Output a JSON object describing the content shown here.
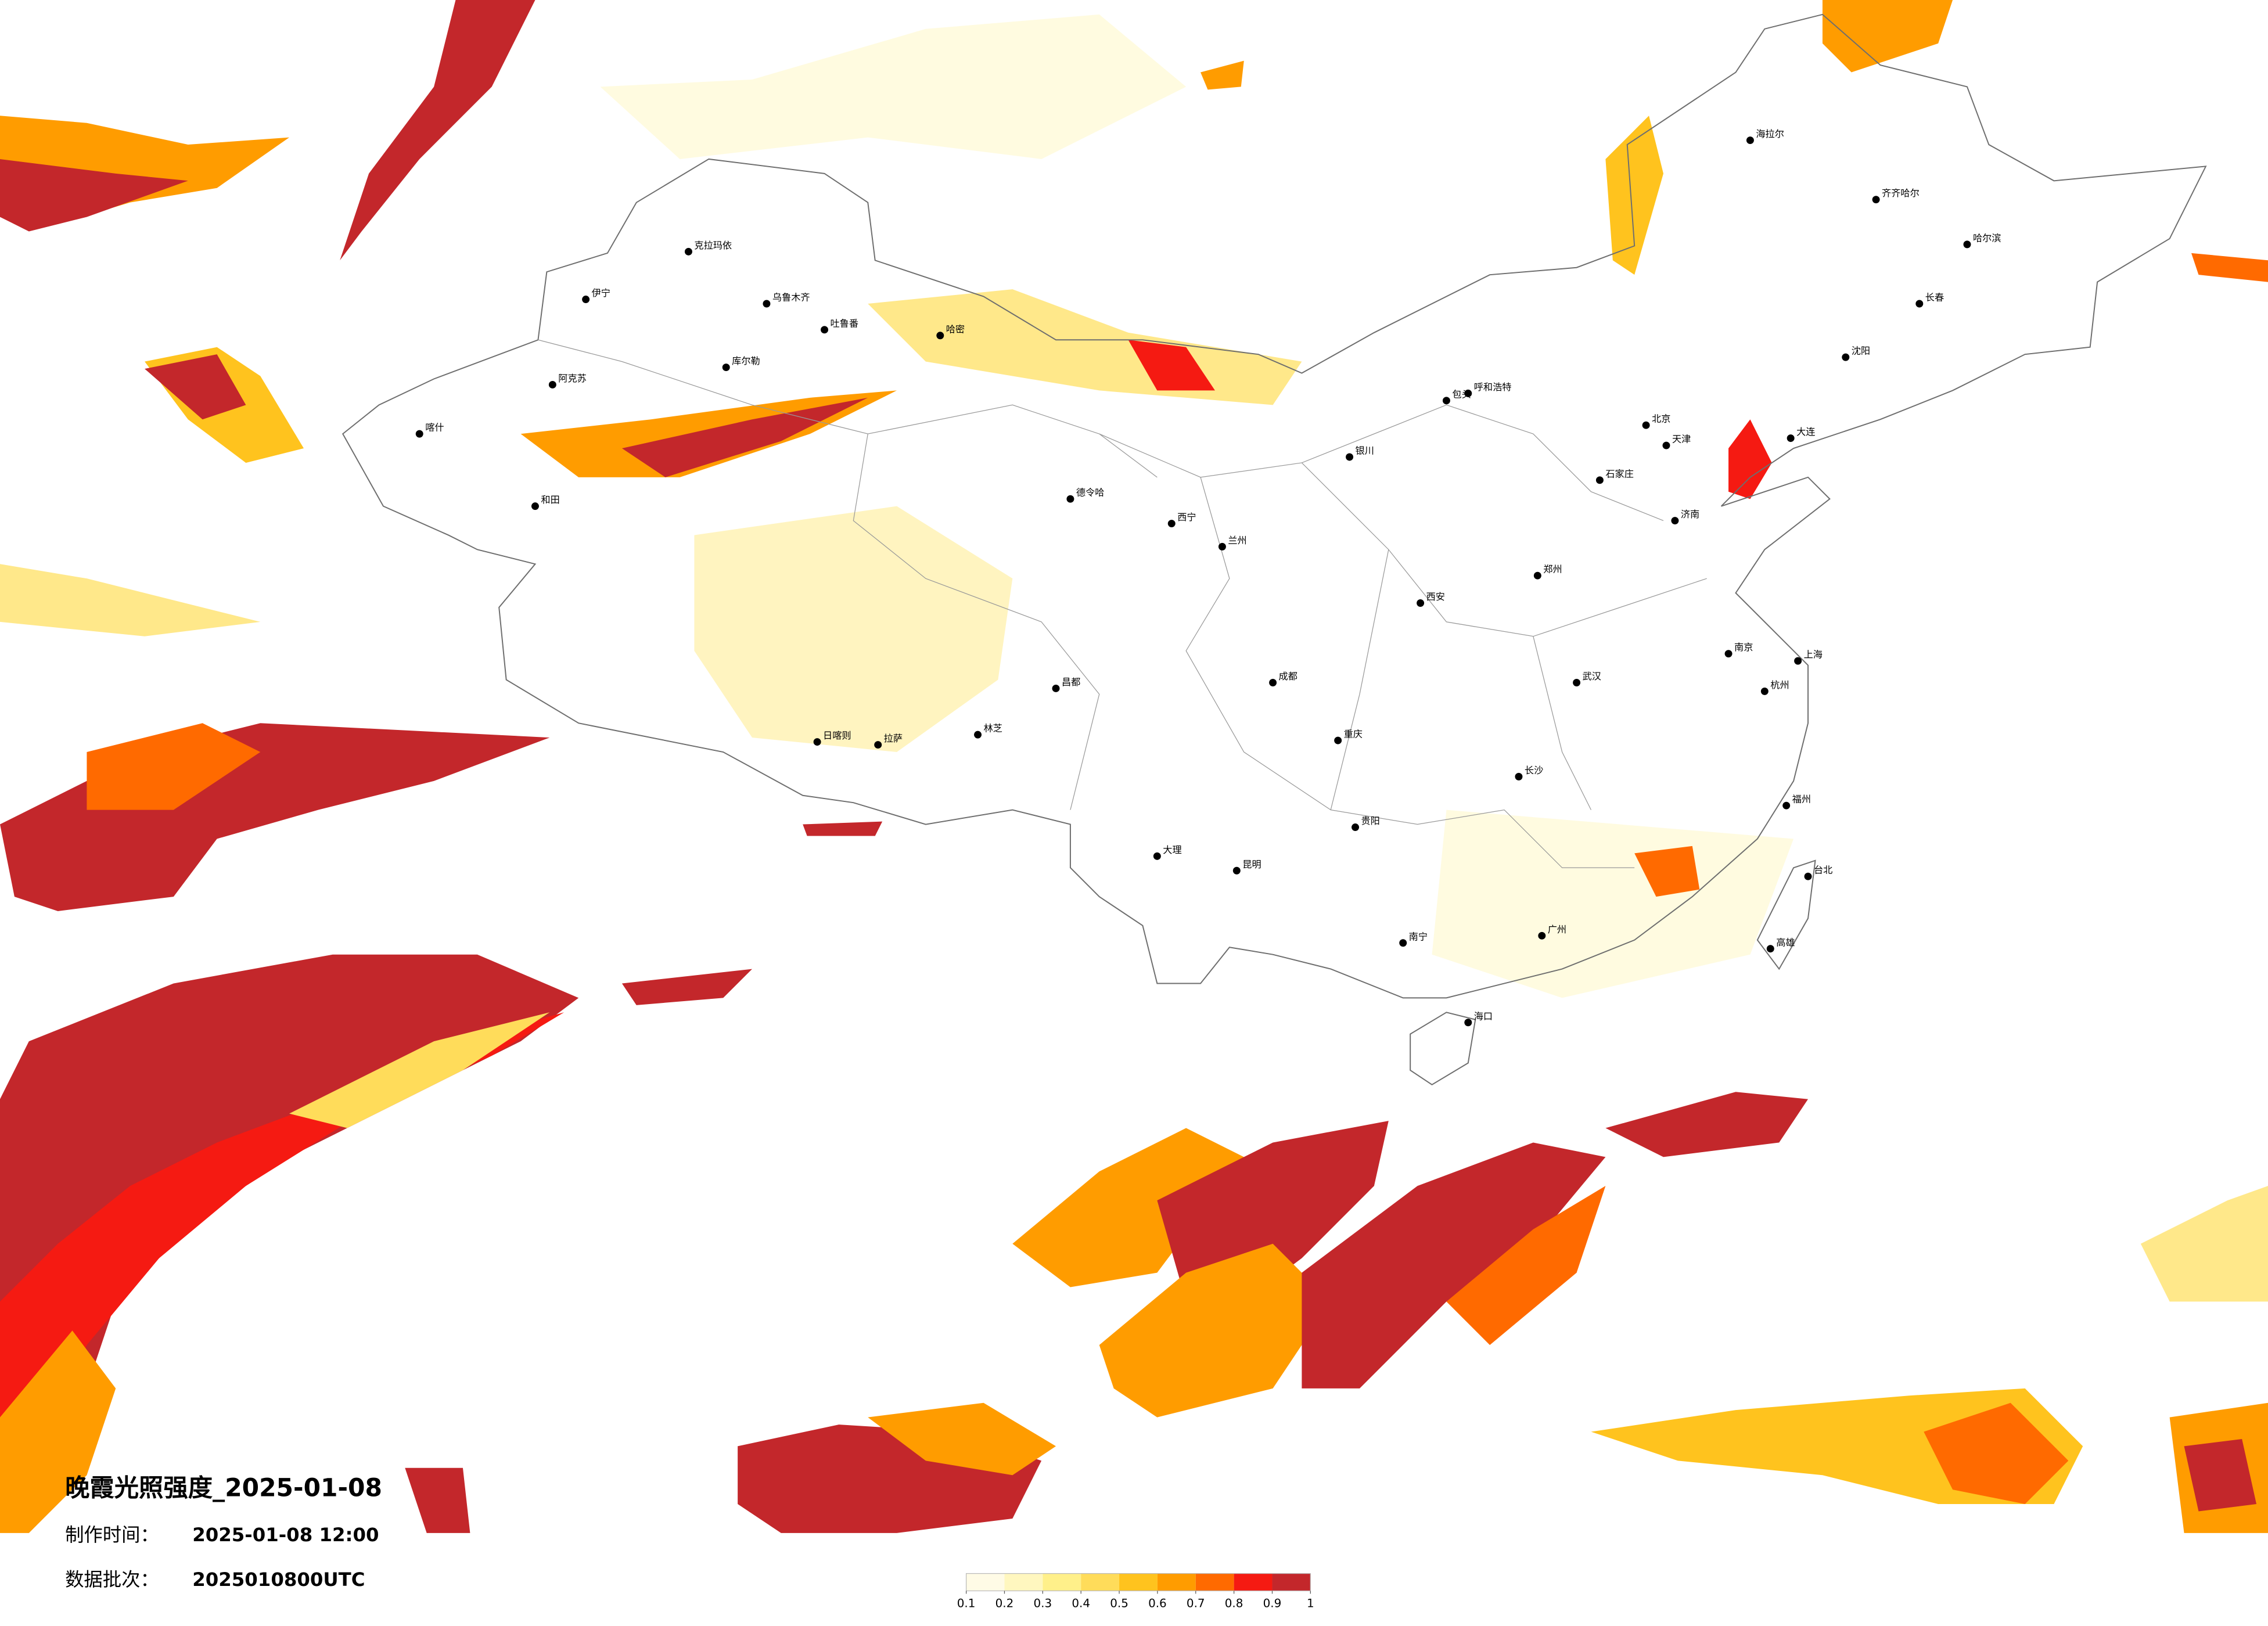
{
  "header": {
    "title": "晚霞光照强度_2025-01-08",
    "made_label": "制作时间：",
    "made_time": "2025-01-08 12:00",
    "batch_label": "数据批次：",
    "batch": "2025010800UTC"
  },
  "legend": {
    "ticks": [
      0.1,
      0.2,
      0.3,
      0.4,
      0.5,
      0.6,
      0.7,
      0.8,
      0.9,
      1
    ],
    "colors": [
      "#fffbe6",
      "#fff7bf",
      "#fff08a",
      "#ffdc5a",
      "#ffc31e",
      "#ff9c00",
      "#ff6a00",
      "#f51a12",
      "#c3272b"
    ]
  },
  "cities": [
    "克拉玛依",
    "乌鲁木齐",
    "吐鲁番",
    "哈密",
    "库尔勒",
    "阿克苏",
    "伊宁",
    "喀什",
    "和田",
    "德令哈",
    "拉萨",
    "日喀则",
    "林芝",
    "昌都",
    "呼和浩特",
    "包头",
    "银川",
    "兰州",
    "西宁",
    "北京",
    "天津",
    "石家庄",
    "济南",
    "郑州",
    "西安",
    "成都",
    "重庆",
    "武汉",
    "长沙",
    "南京",
    "上海",
    "杭州",
    "福州",
    "广州",
    "南宁",
    "昆明",
    "贵阳",
    "海口",
    "哈尔滨",
    "长春",
    "沈阳",
    "大连",
    "台北",
    "高雄",
    "大理",
    "海拉尔",
    "齐齐哈尔"
  ]
}
